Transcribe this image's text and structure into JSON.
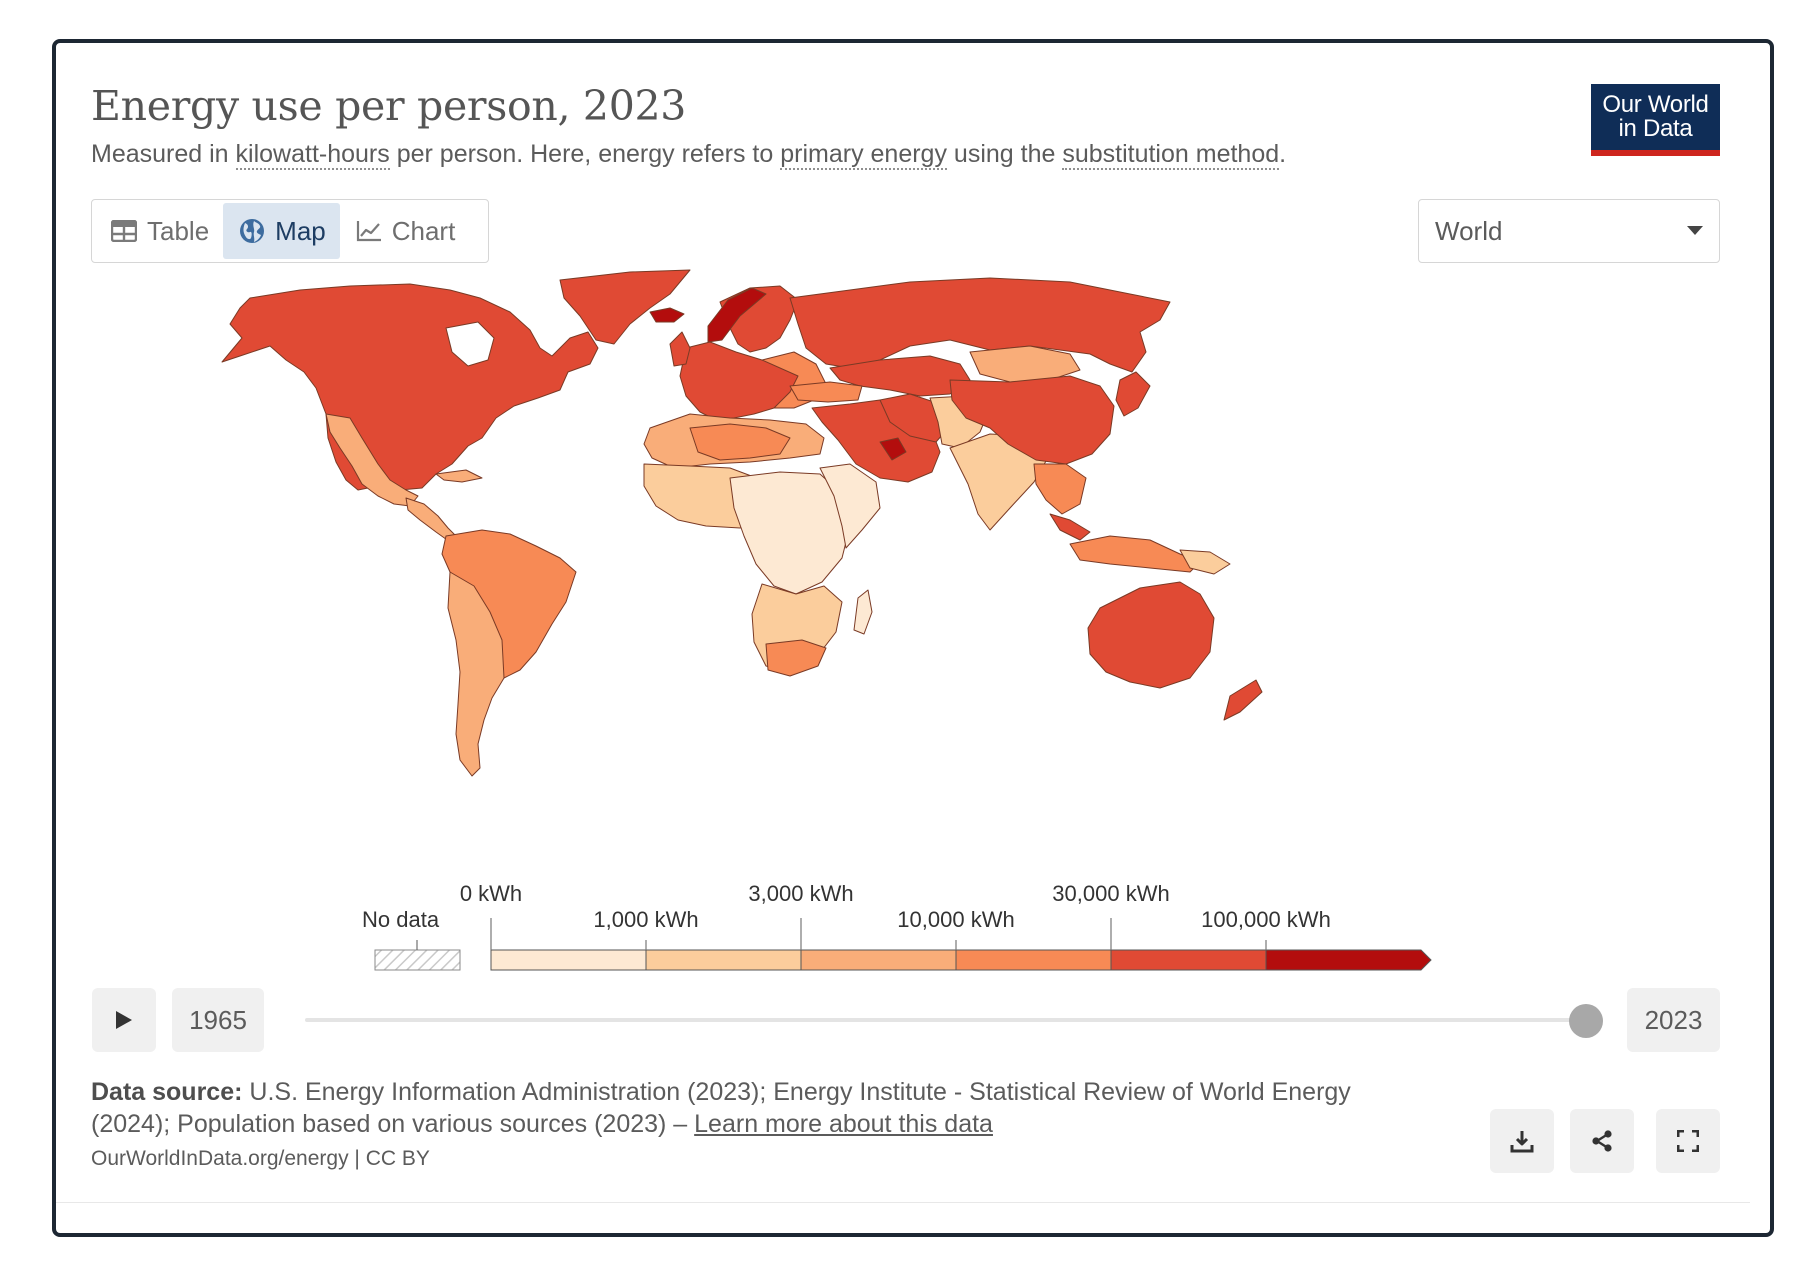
{
  "title": "Energy use per person, 2023",
  "subtitle": {
    "before": "Measured in ",
    "link1": "kilowatt-hours",
    "middle1": " per person. Here, energy refers to ",
    "link2": "primary energy",
    "middle2": " using the ",
    "link3": "substitution method",
    "after": "."
  },
  "logo": {
    "line1": "Our World",
    "line2": "in Data"
  },
  "tabs": [
    {
      "label": "Table",
      "icon": "table-icon"
    },
    {
      "label": "Map",
      "icon": "globe-icon"
    },
    {
      "label": "Chart",
      "icon": "line-chart-icon"
    }
  ],
  "region_select": {
    "value": "World"
  },
  "legend": {
    "no_data_label": "No data",
    "top_labels": [
      "0 kWh",
      "3,000 kWh",
      "30,000 kWh"
    ],
    "bottom_labels": [
      "1,000 kWh",
      "10,000 kWh",
      "100,000 kWh"
    ],
    "bins": [
      {
        "color": "#fde9d3"
      },
      {
        "color": "#fbcd9c"
      },
      {
        "color": "#f9ad79"
      },
      {
        "color": "#f78a55"
      },
      {
        "color": "#e04a34"
      },
      {
        "color": "#b30d0d"
      }
    ]
  },
  "timeline": {
    "start_year": "1965",
    "end_year": "2023",
    "selected_year": "2023"
  },
  "source": {
    "label": "Data source:",
    "text": " U.S. Energy Information Administration (2023); Energy Institute - Statistical Review of World Energy (2024); Population based on various sources (2023) – ",
    "learn_more": "Learn more about this data"
  },
  "credit": "OurWorldInData.org/energy | CC BY",
  "actions": [
    {
      "name": "download-button",
      "icon": "download-icon"
    },
    {
      "name": "share-button",
      "icon": "share-icon"
    },
    {
      "name": "fullscreen-button",
      "icon": "fullscreen-icon"
    }
  ],
  "colors": {
    "frame": "#1d2733",
    "brand": "#0f2d57",
    "brand_accent": "#ce261e",
    "active_tab_bg": "#dbe5f0"
  }
}
